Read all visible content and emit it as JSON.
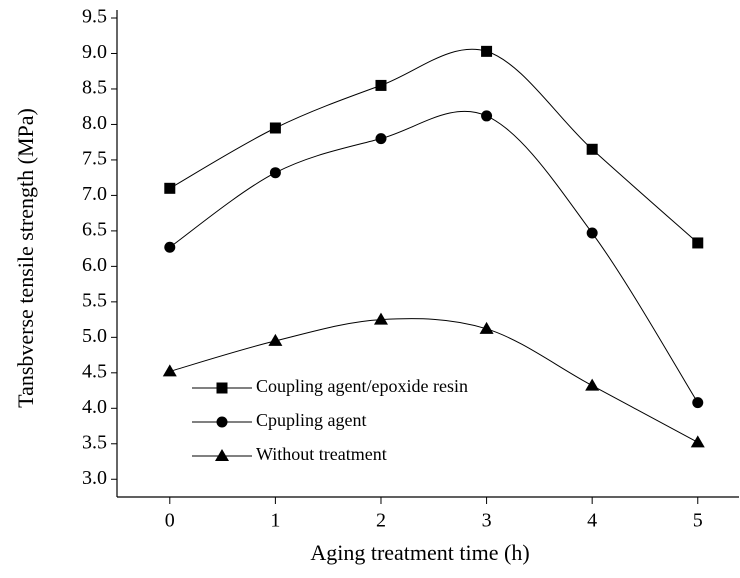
{
  "chart_data": {
    "type": "line",
    "x_label": "Aging treatment time (h)",
    "y_label": "Tansbverse tensile strength (MPa)",
    "x": [
      0,
      1,
      2,
      3,
      4,
      5
    ],
    "series": [
      {
        "name": "Coupling agent/epoxide resin",
        "color": "#000000",
        "marker": "square",
        "values": [
          7.1,
          7.95,
          8.55,
          9.03,
          7.65,
          6.33
        ]
      },
      {
        "name": "Cpupling agent",
        "color": "#000000",
        "marker": "circle",
        "values": [
          6.27,
          7.32,
          7.8,
          8.12,
          6.47,
          4.08
        ]
      },
      {
        "name": "Without treatment",
        "color": "#000000",
        "marker": "triangle",
        "values": [
          4.52,
          4.95,
          5.25,
          5.12,
          4.32,
          3.52
        ]
      }
    ],
    "xlim": [
      -0.5,
      5.4
    ],
    "ylim": [
      2.75,
      9.5
    ],
    "xticks": [
      0,
      1,
      2,
      3,
      4,
      5
    ],
    "yticks": [
      {
        "value": 3,
        "label": "3.0"
      },
      3.5,
      {
        "value": 4,
        "label": "4.0"
      },
      4.5,
      {
        "value": 5,
        "label": "5.0"
      },
      5.5,
      {
        "value": 6,
        "label": "6.0"
      },
      6.5,
      {
        "value": 7,
        "label": "7.0"
      },
      7.5,
      {
        "value": 8,
        "label": "8.0"
      },
      8.5,
      {
        "value": 9,
        "label": "9.0"
      },
      9.5
    ],
    "smooth": true
  }
}
